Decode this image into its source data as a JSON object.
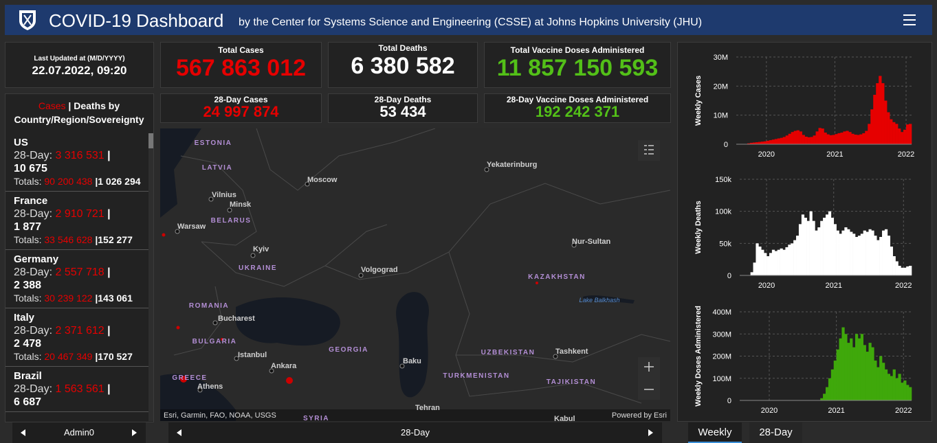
{
  "header": {
    "title": "COVID-19 Dashboard",
    "subtitle": "by the Center for Systems Science and Engineering (CSSE) at Johns Hopkins University (JHU)"
  },
  "last_updated": {
    "label": "Last Updated at (M/D/YYYY)",
    "value": "22.07.2022, 09:20"
  },
  "totals": [
    {
      "label": "Total Cases",
      "value": "567 863 012"
    },
    {
      "label": "Total Deaths",
      "value": "6 380 582"
    },
    {
      "label": "Total Vaccine Doses Administered",
      "value": "11 857 150 593"
    }
  ],
  "day28": [
    {
      "label": "28-Day Cases",
      "value": "24 997 874"
    },
    {
      "label": "28-Day Deaths",
      "value": "53 434"
    },
    {
      "label": "28-Day Vaccine Doses Administered",
      "value": "192 242 371"
    }
  ],
  "country_list": {
    "title_cases": "Cases",
    "separator": "|",
    "title_rest": "Deaths by Country/Region/Sovereignty",
    "day28_label": "28-Day:",
    "totals_label": "Totals:",
    "items": [
      {
        "name": "US",
        "cases_28": "3 316 531",
        "deaths_28": "10 675",
        "cases_total": "90 200 438",
        "deaths_total": "1 026 294"
      },
      {
        "name": "France",
        "cases_28": "2 910 721",
        "deaths_28": "1 877",
        "cases_total": "33 546 628",
        "deaths_total": "152 277"
      },
      {
        "name": "Germany",
        "cases_28": "2 557 718",
        "deaths_28": "2 388",
        "cases_total": "30 239 122",
        "deaths_total": "143 061"
      },
      {
        "name": "Italy",
        "cases_28": "2 371 612",
        "deaths_28": "2 478",
        "cases_total": "20 467 349",
        "deaths_total": "170 527"
      },
      {
        "name": "Brazil",
        "cases_28": "1 563 561",
        "deaths_28": "6 687"
      }
    ]
  },
  "map": {
    "countries": [
      "ESTONIA",
      "LATVIA",
      "BELARUS",
      "UKRAINE",
      "ROMANIA",
      "BULGARIA",
      "GEORGIA",
      "KAZAKHSTAN",
      "UZBEKISTAN",
      "TURKMENISTAN",
      "TAJIKISTAN",
      "GREECE",
      "SYRIA"
    ],
    "cities": [
      "Vilnius",
      "Minsk",
      "Warsaw",
      "Moscow",
      "Yekaterinburg",
      "Kyiv",
      "Volgograd",
      "Nur-Sultan",
      "Bucharest",
      "Istanbul",
      "Ankara",
      "Baku",
      "Tashkent",
      "Athens",
      "Tehran",
      "Kabul"
    ],
    "water": [
      "Lake Balkhash"
    ],
    "attribution": "Esri, Garmin, FAO, NOAA, USGS",
    "powered": "Powered by Esri"
  },
  "nav": {
    "left": "Admin0",
    "middle": "28-Day",
    "tabs": [
      "Weekly",
      "28-Day"
    ]
  },
  "chart_data": [
    {
      "type": "bar",
      "y_label": "Weekly Cases",
      "color": "#e60000",
      "grid": true,
      "values": [
        0,
        0,
        0,
        0.1,
        0.3,
        0.5,
        0.6,
        0.7,
        0.8,
        0.9,
        1,
        1.2,
        1.4,
        1.6,
        1.8,
        2,
        2.2,
        2.5,
        3,
        3.6,
        4.2,
        4.6,
        4.8,
        4.4,
        3.2,
        2.6,
        2.4,
        2.5,
        3,
        4.4,
        5.6,
        5.4,
        4,
        3.4,
        3.1,
        3.2,
        3.5,
        3.8,
        4,
        4.4,
        4.6,
        4.2,
        3.6,
        3.3,
        3.2,
        3.4,
        3.8,
        4.6,
        7,
        12,
        17,
        21,
        23.5,
        21,
        15,
        11,
        8.6,
        7.6,
        7,
        5.4,
        4.2,
        5,
        6.8,
        7
      ],
      "xlim": [
        0,
        64
      ],
      "xticks": [
        {
          "value": 11,
          "label": "2020"
        },
        {
          "value": 36,
          "label": "2021"
        },
        {
          "value": 62,
          "label": "2022"
        }
      ],
      "ylim": [
        0,
        30
      ],
      "yticks": [
        0,
        {
          "value": 10,
          "label": "10M"
        },
        {
          "value": 20,
          "label": "20M"
        },
        {
          "value": 30,
          "label": "30M"
        }
      ]
    },
    {
      "type": "bar",
      "y_label": "Weekly Deaths",
      "color": "#ffffff",
      "grid": true,
      "values": [
        0,
        0,
        0,
        0,
        5,
        20,
        50,
        45,
        40,
        35,
        30,
        35,
        40,
        38,
        40,
        42,
        40,
        44,
        48,
        50,
        55,
        62,
        80,
        95,
        90,
        85,
        100,
        85,
        70,
        75,
        85,
        90,
        95,
        100,
        90,
        80,
        70,
        65,
        70,
        75,
        72,
        68,
        65,
        60,
        62,
        65,
        70,
        68,
        72,
        70,
        62,
        55,
        60,
        70,
        72,
        62,
        45,
        30,
        22,
        15,
        12,
        12,
        14,
        15
      ],
      "xlim": [
        0,
        64
      ],
      "xticks": [
        {
          "value": 10,
          "label": "2020"
        },
        {
          "value": 35,
          "label": "2021"
        },
        {
          "value": 61,
          "label": "2022"
        }
      ],
      "ylim": [
        0,
        150
      ],
      "yticks": [
        0,
        {
          "value": 50,
          "label": "50k"
        },
        {
          "value": 100,
          "label": "100k"
        },
        {
          "value": 150,
          "label": "150k"
        }
      ]
    },
    {
      "type": "bar",
      "y_label": "Weekly Doses Administered",
      "color": "#3fa80b",
      "grid": true,
      "values": [
        0,
        0,
        0,
        0,
        0,
        0,
        0,
        0,
        0,
        0,
        0,
        0,
        0,
        0,
        0,
        0,
        0,
        0,
        0,
        0,
        0,
        0,
        0,
        0,
        0,
        0,
        0,
        0,
        0,
        0,
        10,
        30,
        60,
        100,
        140,
        180,
        230,
        280,
        330,
        300,
        260,
        280,
        240,
        300,
        280,
        300,
        250,
        220,
        260,
        240,
        180,
        150,
        200,
        170,
        140,
        120,
        110,
        140,
        100,
        120,
        80,
        90,
        70,
        60
      ],
      "xlim": [
        0,
        64
      ],
      "xticks": [
        {
          "value": 11,
          "label": "2020"
        },
        {
          "value": 36,
          "label": "2021"
        },
        {
          "value": 61,
          "label": "2022"
        }
      ],
      "ylim": [
        0,
        400
      ],
      "yticks": [
        0,
        {
          "value": 100,
          "label": "100M"
        },
        {
          "value": 200,
          "label": "200M"
        },
        {
          "value": 300,
          "label": "300M"
        },
        {
          "value": 400,
          "label": "400M"
        }
      ]
    }
  ]
}
